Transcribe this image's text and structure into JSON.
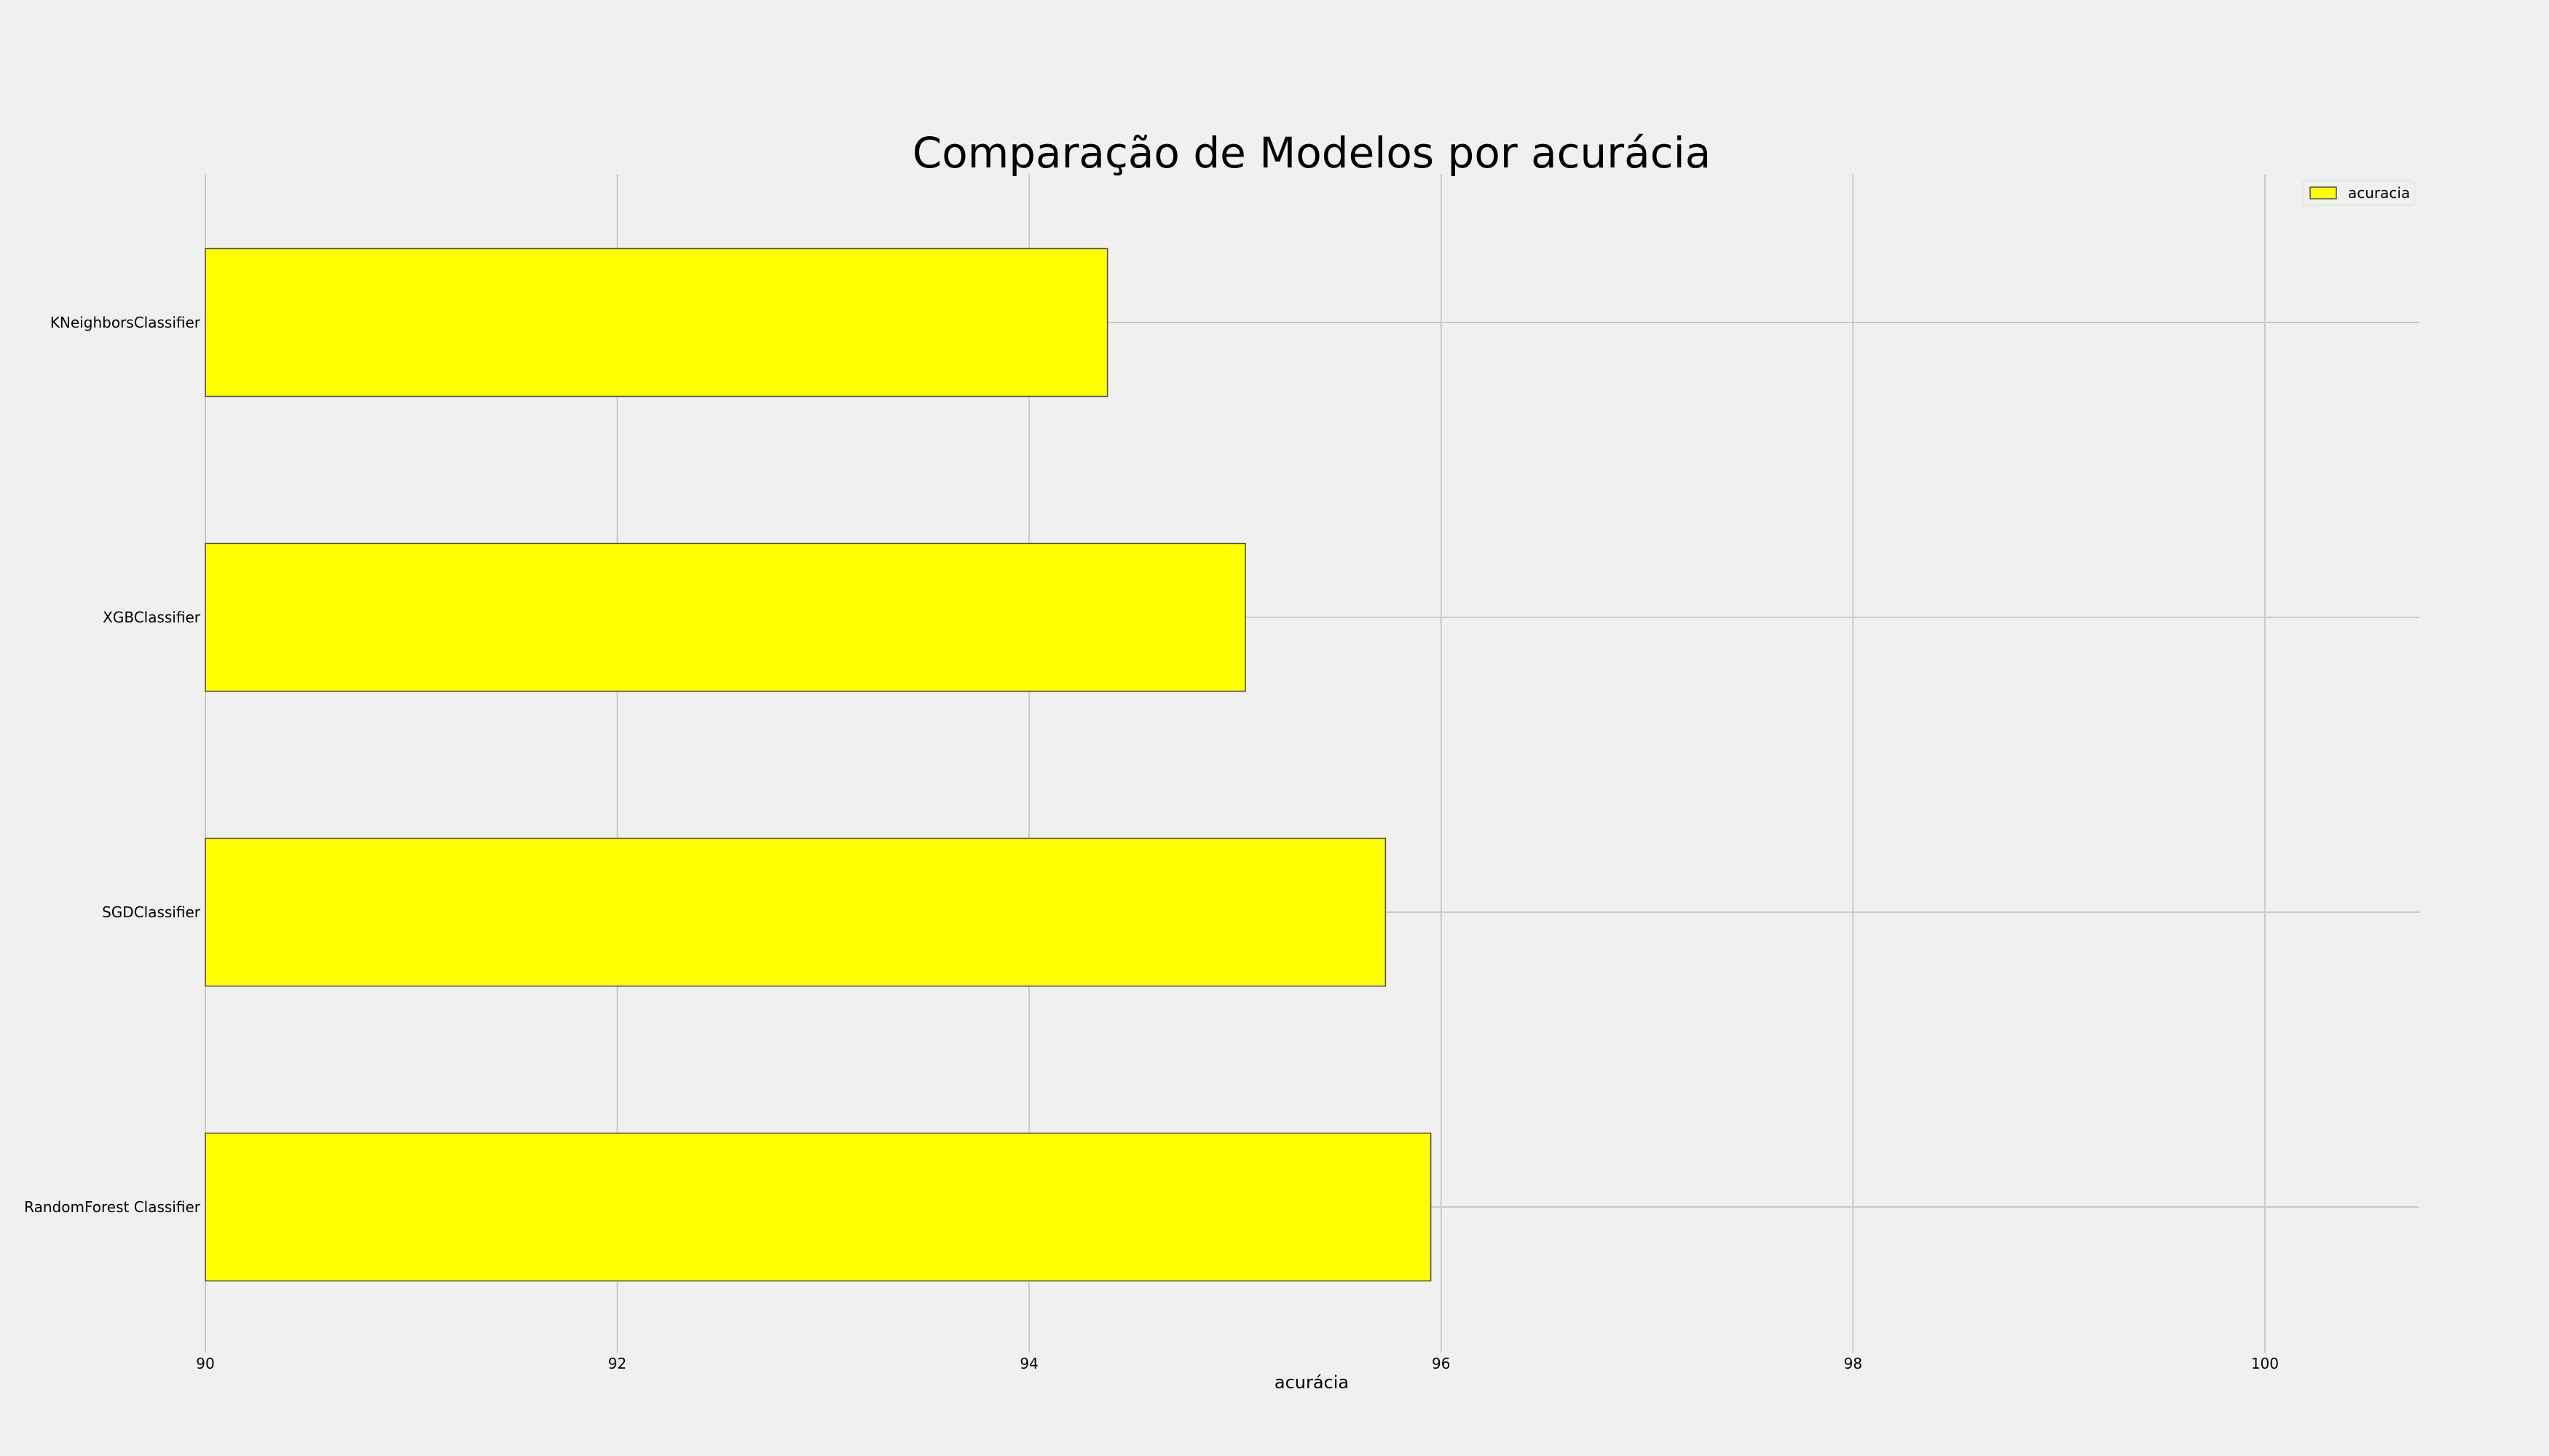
{
  "chart_data": {
    "type": "bar",
    "orientation": "horizontal",
    "title": "Comparação de Modelos por acurácia",
    "xlabel": "acurácia",
    "ylabel": "",
    "categories": [
      "KNeighborsClassifier",
      "XGBClassifier",
      "SGDClassifier",
      "RandomForest Classifier"
    ],
    "series": [
      {
        "name": "acuracia",
        "values": [
          94.38,
          95.05,
          95.73,
          95.95
        ],
        "color": "#ffff00"
      }
    ],
    "xlim": [
      90,
      100.75
    ],
    "xticks": [
      90,
      92,
      94,
      96,
      98,
      100
    ],
    "xtick_labels": [
      "90",
      "92",
      "94",
      "96",
      "98",
      "100"
    ],
    "grid": true,
    "legend_position": "top-right",
    "background_color": "#f0f0f0",
    "grid_color": "#cbcbcb"
  }
}
